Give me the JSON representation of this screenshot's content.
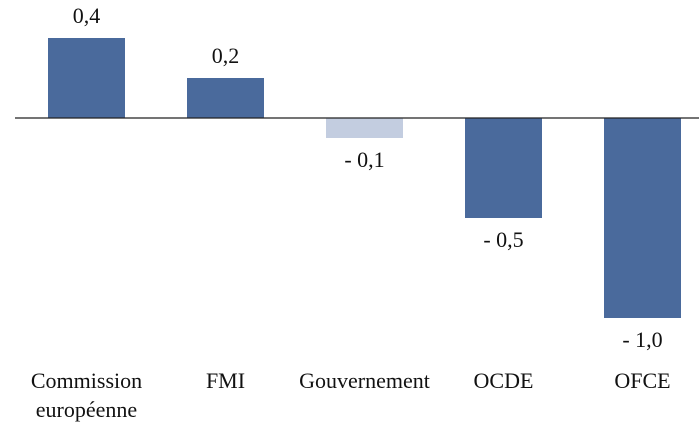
{
  "chart_data": {
    "type": "bar",
    "categories": [
      "Commission européenne",
      "FMI",
      "Gouvernement",
      "OCDE",
      "OFCE"
    ],
    "values": [
      0.4,
      0.2,
      -0.1,
      -0.5,
      -1.0
    ],
    "value_labels": [
      "0,4",
      "0,2",
      "- 0,1",
      "- 0,5",
      "- 1,0"
    ],
    "colors": [
      "#4a6a9c",
      "#4a6a9c",
      "#c3cde0",
      "#4a6a9c",
      "#4a6a9c"
    ]
  }
}
